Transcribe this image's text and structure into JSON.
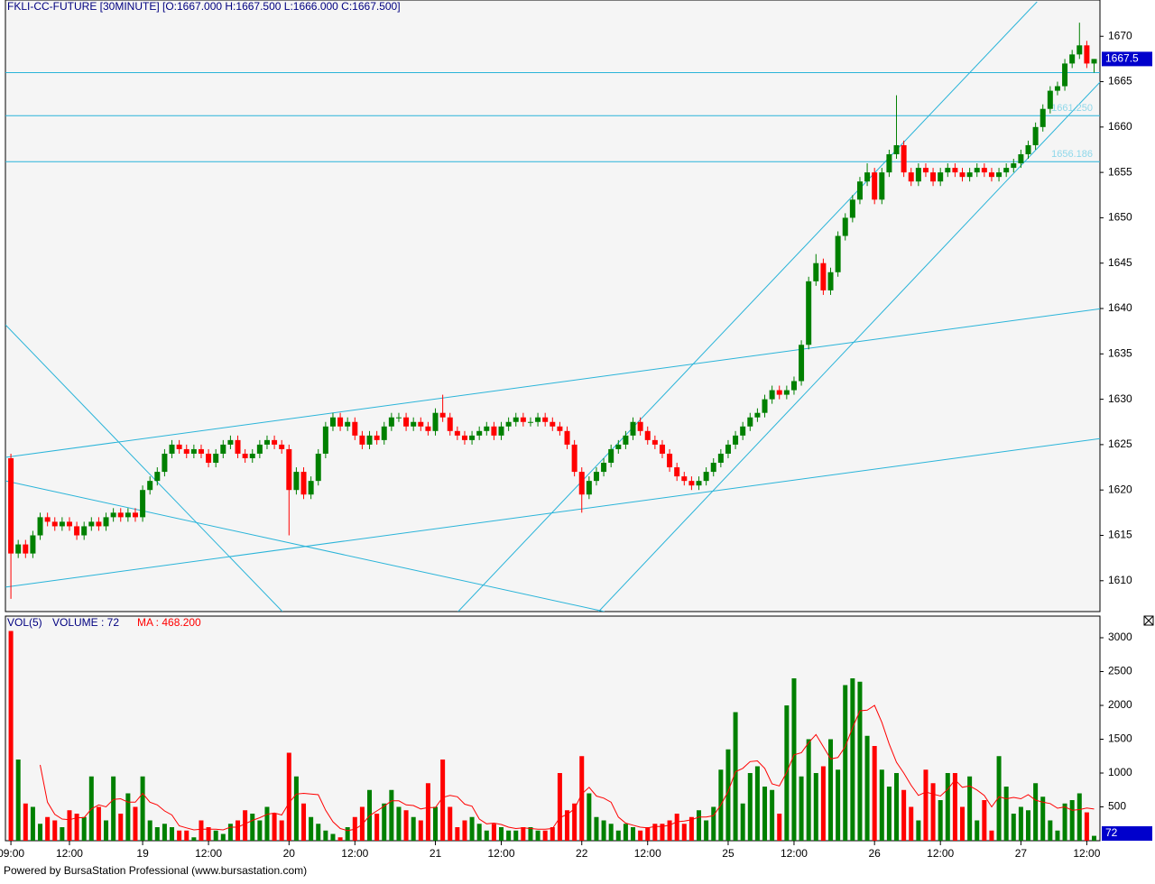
{
  "chart_data": [
    {
      "type": "candlestick",
      "title": "FKLI-CC-FUTURE  [30MINUTE] [O:1667.000  H:1667.500  L:1666.000  C:1667.500]",
      "up_color": "#008000",
      "down_color": "#ff0000",
      "line_color": "#2ab4d9",
      "xlim": [
        -0.75,
        148.8
      ],
      "xticks": [
        {
          "value": 0,
          "label": "09:00"
        },
        {
          "value": 8,
          "label": "12:00"
        },
        {
          "value": 18,
          "label": "19"
        },
        {
          "value": 27,
          "label": "12:00"
        },
        {
          "value": 38,
          "label": "20"
        },
        {
          "value": 47,
          "label": "12:00"
        },
        {
          "value": 58,
          "label": "21"
        },
        {
          "value": 67,
          "label": "12:00"
        },
        {
          "value": 78,
          "label": "22"
        },
        {
          "value": 87,
          "label": "12:00"
        },
        {
          "value": 98,
          "label": "25"
        },
        {
          "value": 107,
          "label": "12:00"
        },
        {
          "value": 118,
          "label": "26"
        },
        {
          "value": 127,
          "label": "12:00"
        },
        {
          "value": 138,
          "label": "27"
        },
        {
          "value": 147,
          "label": "12:00"
        }
      ],
      "ylim": [
        1606.6,
        1674
      ],
      "yticks": [
        1610,
        1615,
        1620,
        1625,
        1630,
        1635,
        1640,
        1645,
        1650,
        1655,
        1660,
        1665,
        1670
      ],
      "open": [
        1623.5,
        1613,
        1614,
        1613,
        1615,
        1617,
        1616.5,
        1616,
        1616.5,
        1616,
        1615,
        1616,
        1616.5,
        1616,
        1617,
        1617.5,
        1617,
        1617.5,
        1617,
        1620,
        1621,
        1622,
        1624,
        1625,
        1624.5,
        1624,
        1624.5,
        1624,
        1623,
        1624,
        1625,
        1625.5,
        1624,
        1623.5,
        1624,
        1625,
        1625.5,
        1625,
        1624.5,
        1620,
        1622,
        1619.5,
        1621,
        1624,
        1627,
        1628,
        1627,
        1627.5,
        1626,
        1625,
        1626,
        1625.5,
        1627,
        1628,
        1628,
        1627,
        1627.5,
        1627,
        1626.5,
        1628.5,
        1628,
        1626.5,
        1626,
        1625.5,
        1626,
        1626.5,
        1627,
        1626,
        1627,
        1627.5,
        1628,
        1627.5,
        1627.5,
        1628,
        1627.5,
        1627,
        1626.5,
        1625,
        1622,
        1619.5,
        1621,
        1622,
        1623,
        1624.5,
        1625,
        1626,
        1627.5,
        1626.5,
        1625.5,
        1625,
        1624,
        1622.5,
        1621.5,
        1621,
        1620.5,
        1621,
        1622,
        1623,
        1624,
        1625,
        1626,
        1627,
        1628,
        1628.5,
        1630,
        1631,
        1630.5,
        1631,
        1632,
        1636,
        1643,
        1645,
        1642,
        1644,
        1648,
        1650,
        1652,
        1654,
        1655,
        1652,
        1655,
        1657,
        1658,
        1655,
        1654,
        1655.5,
        1655,
        1654,
        1655,
        1655.5,
        1655,
        1654.5,
        1655,
        1655.5,
        1655,
        1654.5,
        1655,
        1655.5,
        1656,
        1657,
        1658,
        1660,
        1662,
        1664,
        1664.5,
        1667,
        1668,
        1669,
        1667
      ],
      "high": [
        1624,
        1614.5,
        1614.5,
        1615.5,
        1617.5,
        1617.5,
        1617,
        1617,
        1617,
        1616.5,
        1616.5,
        1617,
        1617,
        1617.5,
        1618,
        1618,
        1618,
        1618,
        1620.5,
        1621.5,
        1622.5,
        1624.5,
        1625.5,
        1625.5,
        1625,
        1625,
        1625,
        1624.5,
        1624.5,
        1625.5,
        1626,
        1626,
        1624.5,
        1624.5,
        1625.5,
        1626,
        1626,
        1625.5,
        1625,
        1622.5,
        1622.5,
        1621.5,
        1624.5,
        1627.5,
        1628.5,
        1628.5,
        1628,
        1628,
        1626.5,
        1626.5,
        1626.5,
        1627.5,
        1628.5,
        1628.5,
        1628.5,
        1628,
        1628,
        1627.5,
        1629,
        1630.5,
        1628.5,
        1627,
        1626.5,
        1626.5,
        1627,
        1627.5,
        1627.5,
        1627.5,
        1628,
        1628.5,
        1628.5,
        1628,
        1628.5,
        1628.5,
        1628,
        1627.5,
        1627,
        1625.5,
        1622.5,
        1621.5,
        1622.5,
        1623.5,
        1625,
        1625.5,
        1626.5,
        1628,
        1628,
        1627,
        1626,
        1625.5,
        1624.5,
        1623,
        1622,
        1621.5,
        1621.5,
        1622.5,
        1623.5,
        1624.5,
        1625.5,
        1626.5,
        1627.5,
        1628.5,
        1629,
        1630.5,
        1631.5,
        1631.5,
        1631.5,
        1632.5,
        1636.5,
        1643.5,
        1646,
        1645.5,
        1644.5,
        1648.5,
        1650.5,
        1652.5,
        1654.5,
        1656,
        1655.5,
        1655.5,
        1657.5,
        1663.5,
        1658.5,
        1655.5,
        1656,
        1656,
        1655.5,
        1655.5,
        1656,
        1656,
        1655.5,
        1655.5,
        1656,
        1656,
        1655.5,
        1655.5,
        1656,
        1656.5,
        1657.5,
        1658.5,
        1660.5,
        1662.5,
        1664.5,
        1665,
        1667.5,
        1668.5,
        1671.5,
        1669.5,
        1667.5
      ],
      "low": [
        1608,
        1612.5,
        1612.5,
        1612.5,
        1614.5,
        1616,
        1615.5,
        1615.5,
        1615.5,
        1614.5,
        1614.5,
        1615.5,
        1615.5,
        1615.5,
        1616.5,
        1616.5,
        1616.5,
        1616.5,
        1616.5,
        1619.5,
        1620.5,
        1621.5,
        1623.5,
        1624,
        1623.5,
        1623.5,
        1623.5,
        1622.5,
        1622.5,
        1623.5,
        1624.5,
        1623.5,
        1623,
        1623,
        1623.5,
        1624.5,
        1624.5,
        1624,
        1615,
        1619.5,
        1619,
        1619,
        1620.5,
        1623.5,
        1626.5,
        1626.5,
        1626.5,
        1625.5,
        1624.5,
        1624.5,
        1625,
        1625,
        1626.5,
        1627.5,
        1626.5,
        1626.5,
        1626.5,
        1626,
        1626,
        1627.5,
        1626,
        1625.5,
        1625,
        1625,
        1625.5,
        1626,
        1625.5,
        1625.5,
        1626.5,
        1627,
        1627,
        1627,
        1627,
        1627,
        1626.5,
        1626,
        1624.5,
        1621.5,
        1617.5,
        1619,
        1620.5,
        1621.5,
        1622.5,
        1624,
        1624.5,
        1625.5,
        1626,
        1625,
        1624.5,
        1623.5,
        1622,
        1621,
        1620.5,
        1620,
        1620,
        1620.5,
        1621.5,
        1622.5,
        1623.5,
        1624.5,
        1625.5,
        1626.5,
        1627.5,
        1628,
        1629.5,
        1630,
        1630,
        1630.5,
        1631.5,
        1635.5,
        1642.5,
        1641.5,
        1641.5,
        1643.5,
        1647.5,
        1649.5,
        1651.5,
        1653.5,
        1651.5,
        1651.5,
        1654.5,
        1656.5,
        1654.5,
        1653.5,
        1653.5,
        1654.5,
        1653.5,
        1653.5,
        1654.5,
        1654.5,
        1654,
        1654,
        1654.5,
        1654.5,
        1654,
        1654,
        1654.5,
        1655,
        1655.5,
        1656.5,
        1657.5,
        1659.5,
        1661.5,
        1663.5,
        1664,
        1666.5,
        1667.5,
        1666.5,
        1666
      ],
      "close": [
        1613,
        1614,
        1613,
        1615,
        1617,
        1616.5,
        1616,
        1616.5,
        1616,
        1615,
        1616,
        1616.5,
        1616,
        1617,
        1617.5,
        1617,
        1617.5,
        1617,
        1620,
        1621,
        1622,
        1624,
        1625,
        1624.5,
        1624,
        1624.5,
        1624,
        1623,
        1624,
        1625,
        1625.5,
        1624,
        1623.5,
        1624,
        1625,
        1625.5,
        1625,
        1624.5,
        1620,
        1622,
        1619.5,
        1621,
        1624,
        1627,
        1628,
        1627,
        1627.5,
        1626,
        1625,
        1626,
        1625.5,
        1627,
        1628,
        1628,
        1627,
        1627.5,
        1627,
        1626.5,
        1628.5,
        1628,
        1626.5,
        1626,
        1625.5,
        1626,
        1626.5,
        1627,
        1626,
        1627,
        1627.5,
        1628,
        1627.5,
        1627.5,
        1628,
        1627.5,
        1627,
        1626.5,
        1625,
        1622,
        1619.5,
        1621,
        1622,
        1623,
        1624.5,
        1625,
        1626,
        1627.5,
        1626.5,
        1625.5,
        1625,
        1624,
        1622.5,
        1621.5,
        1621,
        1620.5,
        1621,
        1622,
        1623,
        1624,
        1625,
        1626,
        1627,
        1628,
        1628.5,
        1630,
        1631,
        1630.5,
        1631,
        1632,
        1636,
        1643,
        1645,
        1642,
        1644,
        1648,
        1650,
        1652,
        1654,
        1655,
        1652,
        1655,
        1657,
        1658,
        1655,
        1654,
        1655.5,
        1655,
        1654,
        1655,
        1655.5,
        1655,
        1654.5,
        1655,
        1655.5,
        1655,
        1654.5,
        1655,
        1655.5,
        1656,
        1657,
        1658,
        1660,
        1662,
        1664,
        1664.5,
        1667,
        1668,
        1669,
        1667,
        1667.5
      ],
      "levels": [
        {
          "value": 1666
        },
        {
          "value": 1661.25,
          "label": "1661.250"
        },
        {
          "value": 1656.186,
          "label": "1656.186"
        }
      ],
      "trendlines": [
        {
          "x": [
            -0.74,
            149.1
          ],
          "y": [
            1623.6,
            1640.0
          ]
        },
        {
          "x": [
            -0.74,
            149.1
          ],
          "y": [
            1609.3,
            1625.7
          ]
        },
        {
          "x": [
            61.1,
            140.2
          ],
          "y": [
            1606.6,
            1673.8
          ]
        },
        {
          "x": [
            80.3,
            149.1
          ],
          "y": [
            1606.6,
            1665.2
          ]
        },
        {
          "x": [
            -0.74,
            37.1
          ],
          "y": [
            1638.2,
            1606.6
          ]
        },
        {
          "x": [
            -0.74,
            81.1
          ],
          "y": [
            1621.0,
            1606.6
          ]
        }
      ]
    },
    {
      "type": "bar",
      "name_label": "VOL(5)",
      "volume_label": "VOLUME : 72",
      "ma_label": "MA : 468.200",
      "ylim": [
        0,
        3320
      ],
      "yticks": [
        500,
        1000,
        1500,
        2000,
        2500,
        3000
      ],
      "series": [
        {
          "name": "VOLUME",
          "values": [
            3100,
            1200,
            550,
            500,
            250,
            350,
            300,
            200,
            450,
            400,
            350,
            950,
            500,
            300,
            950,
            400,
            700,
            500,
            950,
            300,
            200,
            250,
            200,
            150,
            150,
            50,
            300,
            200,
            150,
            100,
            250,
            300,
            450,
            400,
            300,
            500,
            400,
            300,
            1300,
            950,
            550,
            350,
            250,
            150,
            100,
            50,
            200,
            350,
            500,
            750,
            400,
            550,
            750,
            500,
            450,
            350,
            300,
            850,
            500,
            1200,
            500,
            200,
            300,
            350,
            250,
            150,
            250,
            200,
            150,
            150,
            200,
            200,
            150,
            150,
            200,
            1000,
            450,
            550,
            1250,
            700,
            350,
            300,
            250,
            150,
            250,
            200,
            150,
            200,
            250,
            250,
            300,
            400,
            250,
            350,
            450,
            300,
            500,
            1050,
            1350,
            1900,
            550,
            1000,
            1100,
            800,
            750,
            400,
            2000,
            2400,
            950,
            1500,
            1000,
            1100,
            1500,
            1050,
            2300,
            2400,
            2350,
            1550,
            1400,
            1050,
            800,
            1000,
            750,
            500,
            300,
            1050,
            850,
            600,
            1000,
            1000,
            500,
            950,
            300,
            600,
            150,
            1250,
            800,
            400,
            500,
            450,
            850,
            650,
            300,
            150,
            550,
            600,
            700,
            419,
            72
          ]
        },
        {
          "name": "MA",
          "color": "#ff0000",
          "values": [
            null,
            null,
            null,
            null,
            1120,
            570,
            390,
            320,
            310,
            340,
            340,
            470,
            530,
            500,
            610,
            620,
            570,
            570,
            700,
            570,
            530,
            440,
            380,
            220,
            190,
            160,
            170,
            170,
            170,
            160,
            200,
            200,
            250,
            300,
            340,
            390,
            410,
            380,
            560,
            690,
            700,
            690,
            680,
            450,
            280,
            180,
            150,
            170,
            240,
            370,
            440,
            510,
            590,
            590,
            530,
            520,
            470,
            490,
            490,
            640,
            670,
            650,
            540,
            510,
            320,
            250,
            260,
            240,
            200,
            180,
            190,
            180,
            170,
            170,
            180,
            340,
            390,
            470,
            690,
            790,
            660,
            630,
            570,
            350,
            260,
            230,
            200,
            190,
            210,
            210,
            230,
            280,
            290,
            310,
            350,
            350,
            370,
            530,
            730,
            1020,
            1070,
            1170,
            1180,
            1070,
            840,
            810,
            1010,
            1270,
            1300,
            1450,
            1570,
            1390,
            1210,
            1230,
            1390,
            1670,
            1920,
            1930,
            2000,
            1750,
            1430,
            1160,
            1000,
            820,
            670,
            720,
            690,
            660,
            760,
            900,
            790,
            810,
            750,
            670,
            500,
            650,
            620,
            640,
            620,
            680,
            600,
            570,
            550,
            480,
            500,
            450,
            460,
            483.8,
            468.2
          ]
        }
      ]
    },
    {
      "type": "footer",
      "text": "Powered by BursaStation Professional (www.bursastation.com)"
    }
  ]
}
